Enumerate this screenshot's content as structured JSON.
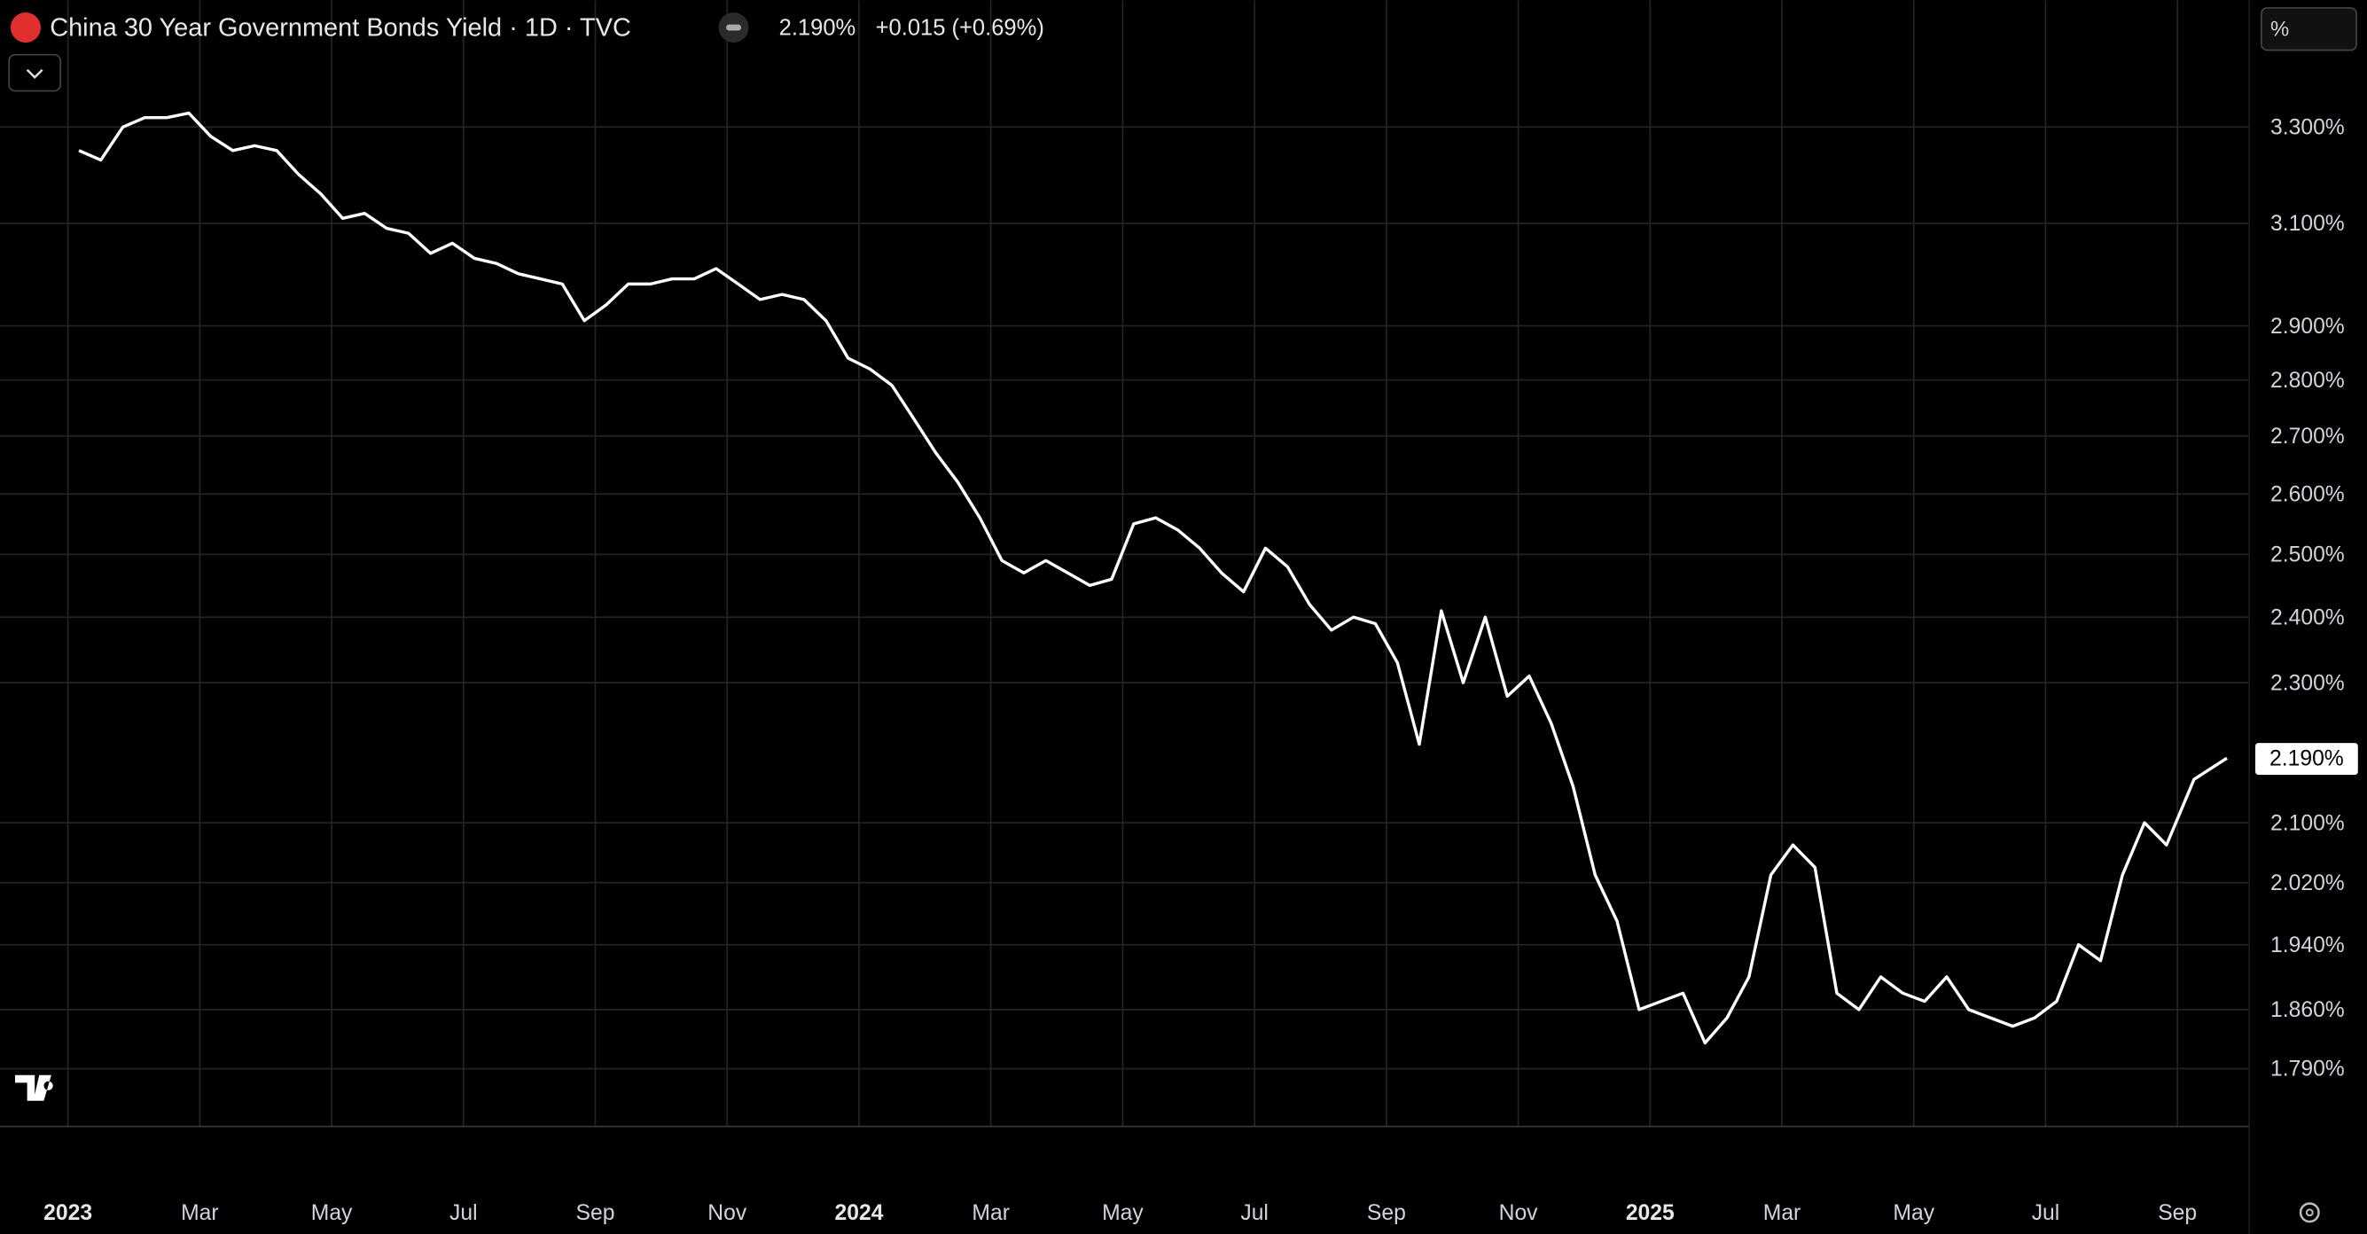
{
  "header": {
    "title": "China 30 Year Government Bonds Yield · 1D · TVC",
    "last_price": "2.190%",
    "change": "+0.015 (+0.69%)",
    "unit_button": "%"
  },
  "chart_data": {
    "type": "line",
    "color": "#ffffff",
    "log_scale": true,
    "grid": true,
    "x": [
      "2023-01",
      "2023-01",
      "2023-01",
      "2023-02",
      "2023-02",
      "2023-02",
      "2023-03",
      "2023-03",
      "2023-03",
      "2023-04",
      "2023-04",
      "2023-04",
      "2023-05",
      "2023-05",
      "2023-05",
      "2023-06",
      "2023-06",
      "2023-06",
      "2023-07",
      "2023-07",
      "2023-07",
      "2023-08",
      "2023-08",
      "2023-08",
      "2023-09",
      "2023-09",
      "2023-09",
      "2023-10",
      "2023-10",
      "2023-10",
      "2023-11",
      "2023-11",
      "2023-11",
      "2023-12",
      "2023-12",
      "2023-12",
      "2024-01",
      "2024-01",
      "2024-01",
      "2024-02",
      "2024-02",
      "2024-02",
      "2024-03",
      "2024-03",
      "2024-03",
      "2024-04",
      "2024-04",
      "2024-04",
      "2024-05",
      "2024-05",
      "2024-05",
      "2024-06",
      "2024-06",
      "2024-06",
      "2024-07",
      "2024-07",
      "2024-07",
      "2024-08",
      "2024-08",
      "2024-08",
      "2024-09",
      "2024-09",
      "2024-09",
      "2024-10",
      "2024-10",
      "2024-10",
      "2024-11",
      "2024-11",
      "2024-11",
      "2024-12",
      "2024-12",
      "2024-12",
      "2025-01",
      "2025-01",
      "2025-01",
      "2025-02",
      "2025-02",
      "2025-02",
      "2025-03",
      "2025-03",
      "2025-03",
      "2025-04",
      "2025-04",
      "2025-04",
      "2025-05",
      "2025-05",
      "2025-05",
      "2025-06",
      "2025-06",
      "2025-06",
      "2025-07",
      "2025-07",
      "2025-07",
      "2025-08",
      "2025-08",
      "2025-08",
      "2025-09",
      "2025-09"
    ],
    "values": [
      3.25,
      3.23,
      3.3,
      3.32,
      3.32,
      3.33,
      3.28,
      3.25,
      3.26,
      3.25,
      3.2,
      3.16,
      3.11,
      3.12,
      3.09,
      3.08,
      3.04,
      3.06,
      3.03,
      3.02,
      3.0,
      2.99,
      2.98,
      2.91,
      2.94,
      2.98,
      2.98,
      2.99,
      2.99,
      3.01,
      2.98,
      2.95,
      2.96,
      2.95,
      2.91,
      2.84,
      2.82,
      2.79,
      2.73,
      2.67,
      2.62,
      2.56,
      2.49,
      2.47,
      2.49,
      2.47,
      2.45,
      2.46,
      2.55,
      2.56,
      2.54,
      2.51,
      2.47,
      2.44,
      2.51,
      2.48,
      2.42,
      2.38,
      2.4,
      2.39,
      2.33,
      2.21,
      2.41,
      2.3,
      2.4,
      2.28,
      2.31,
      2.24,
      2.15,
      2.03,
      1.97,
      1.86,
      1.87,
      1.88,
      1.82,
      1.85,
      1.9,
      2.03,
      2.07,
      2.04,
      1.88,
      1.86,
      1.9,
      1.88,
      1.87,
      1.9,
      1.86,
      1.85,
      1.84,
      1.85,
      1.87,
      1.94,
      1.92,
      2.03,
      2.1,
      2.07,
      2.16,
      2.19
    ],
    "ylim": [
      1.724,
      3.583
    ],
    "yticks": [
      {
        "value": 3.3,
        "label": "3.300%"
      },
      {
        "value": 3.1,
        "label": "3.100%"
      },
      {
        "value": 2.9,
        "label": "2.900%"
      },
      {
        "value": 2.8,
        "label": "2.800%"
      },
      {
        "value": 2.7,
        "label": "2.700%"
      },
      {
        "value": 2.6,
        "label": "2.600%"
      },
      {
        "value": 2.5,
        "label": "2.500%"
      },
      {
        "value": 2.4,
        "label": "2.400%"
      },
      {
        "value": 2.3,
        "label": "2.300%"
      },
      {
        "value": 2.1,
        "label": "2.100%"
      },
      {
        "value": 2.02,
        "label": "2.020%"
      },
      {
        "value": 1.94,
        "label": "1.940%"
      },
      {
        "value": 1.86,
        "label": "1.860%"
      },
      {
        "value": 1.79,
        "label": "1.790%"
      }
    ],
    "xticks": [
      {
        "value": "2023-01",
        "label": "2023"
      },
      {
        "value": "2023-03",
        "label": "Mar"
      },
      {
        "value": "2023-05",
        "label": "May"
      },
      {
        "value": "2023-07",
        "label": "Jul"
      },
      {
        "value": "2023-09",
        "label": "Sep"
      },
      {
        "value": "2023-11",
        "label": "Nov"
      },
      {
        "value": "2024-01",
        "label": "2024"
      },
      {
        "value": "2024-03",
        "label": "Mar"
      },
      {
        "value": "2024-05",
        "label": "May"
      },
      {
        "value": "2024-07",
        "label": "Jul"
      },
      {
        "value": "2024-09",
        "label": "Sep"
      },
      {
        "value": "2024-11",
        "label": "Nov"
      },
      {
        "value": "2025-01",
        "label": "2025"
      },
      {
        "value": "2025-03",
        "label": "Mar"
      },
      {
        "value": "2025-05",
        "label": "May"
      },
      {
        "value": "2025-07",
        "label": "Jul"
      },
      {
        "value": "2025-09",
        "label": "Sep"
      }
    ]
  }
}
